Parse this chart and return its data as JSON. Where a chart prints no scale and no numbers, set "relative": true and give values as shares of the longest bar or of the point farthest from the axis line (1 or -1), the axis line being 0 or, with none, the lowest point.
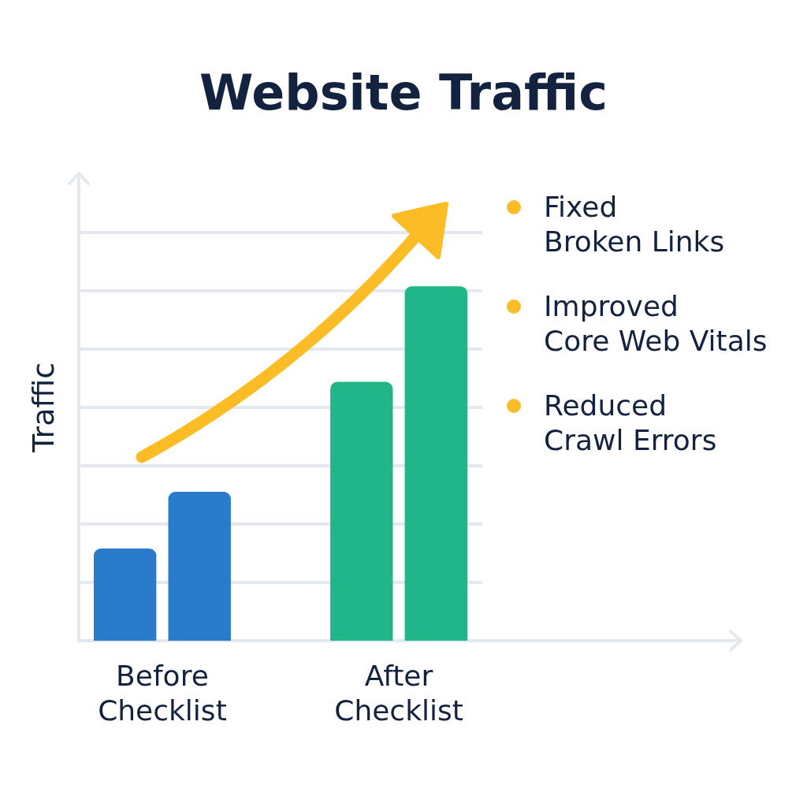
{
  "chart_data": {
    "type": "bar",
    "title": "Website Traffic",
    "ylabel": "Traffic",
    "categories": [
      "Before Checklist",
      "After Checklist"
    ],
    "series": [
      {
        "colors": [
          "#2a7bcb",
          "#20b68a"
        ],
        "values": [
          0.26,
          0.73
        ]
      },
      {
        "colors": [
          "#2a7bcb",
          "#20b68a"
        ],
        "values": [
          0.42,
          1
        ]
      }
    ],
    "relative": true,
    "grid": "y",
    "legend": false,
    "annotations": [
      "Fixed\nBroken Links",
      "Improved\nCore Web Vitals",
      "Reduced\nCrawl Errors"
    ]
  }
}
